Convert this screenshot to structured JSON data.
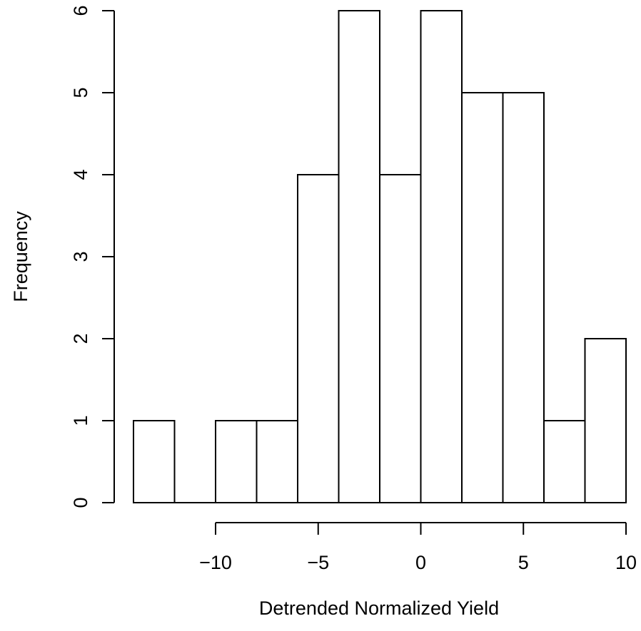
{
  "chart_data": {
    "type": "bar",
    "subtype": "histogram",
    "title": "",
    "xlabel": "Detrended Normalized Yield",
    "ylabel": "Frequency",
    "bins": [
      {
        "from": -14,
        "to": -12,
        "count": 1
      },
      {
        "from": -12,
        "to": -10,
        "count": 0
      },
      {
        "from": -10,
        "to": -8,
        "count": 1
      },
      {
        "from": -8,
        "to": -6,
        "count": 1
      },
      {
        "from": -6,
        "to": -4,
        "count": 4
      },
      {
        "from": -4,
        "to": -2,
        "count": 6
      },
      {
        "from": -2,
        "to": 0,
        "count": 4
      },
      {
        "from": 0,
        "to": 2,
        "count": 6
      },
      {
        "from": 2,
        "to": 4,
        "count": 5
      },
      {
        "from": 4,
        "to": 6,
        "count": 5
      },
      {
        "from": 6,
        "to": 8,
        "count": 1
      },
      {
        "from": 8,
        "to": 10,
        "count": 2
      }
    ],
    "xlim": [
      -14,
      10
    ],
    "ylim": [
      0,
      6
    ],
    "x_ticks": [
      -10,
      -5,
      0,
      5,
      10
    ],
    "x_tick_labels": [
      "−10",
      "−5",
      "0",
      "5",
      "10"
    ],
    "y_ticks": [
      0,
      1,
      2,
      3,
      4,
      5,
      6
    ],
    "y_tick_labels": [
      "0",
      "1",
      "2",
      "3",
      "4",
      "5",
      "6"
    ],
    "grid": false,
    "legend": "none",
    "colors": {
      "bar_fill": "#ffffff",
      "bar_stroke": "#000000"
    }
  }
}
